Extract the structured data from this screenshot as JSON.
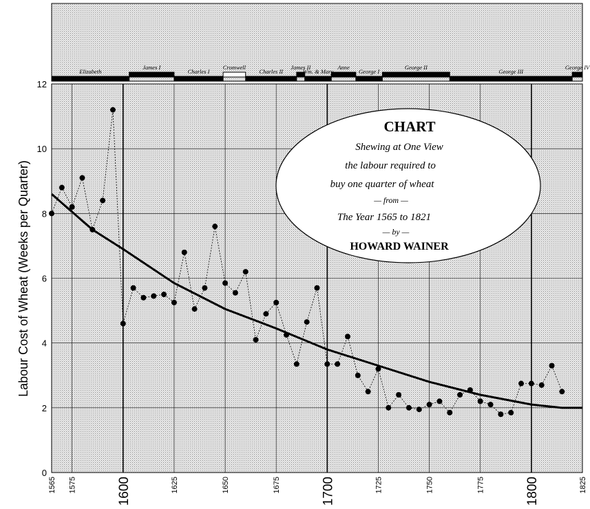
{
  "chart_data": {
    "type": "scatter",
    "title": "CHART",
    "subtitle_lines": [
      "Shewing at One View",
      "the labour required to",
      "buy one quarter of wheat",
      "— from —",
      "The Year 1565 to 1821",
      "— by —",
      "HOWARD WAINER"
    ],
    "ylabel": "Labour Cost of Wheat (Weeks per Quarter)",
    "xlabel": "",
    "xlim": [
      1565,
      1825
    ],
    "ylim": [
      0,
      12
    ],
    "grid": true,
    "x_ticks": [
      {
        "v": 1565,
        "label": "1565",
        "major": false
      },
      {
        "v": 1575,
        "label": "1575",
        "major": false
      },
      {
        "v": 1600,
        "label": "1600",
        "major": true
      },
      {
        "v": 1625,
        "label": "1625",
        "major": false
      },
      {
        "v": 1650,
        "label": "1650",
        "major": false
      },
      {
        "v": 1675,
        "label": "1675",
        "major": false
      },
      {
        "v": 1700,
        "label": "1700",
        "major": true
      },
      {
        "v": 1725,
        "label": "1725",
        "major": false
      },
      {
        "v": 1750,
        "label": "1750",
        "major": false
      },
      {
        "v": 1775,
        "label": "1775",
        "major": false
      },
      {
        "v": 1800,
        "label": "1800",
        "major": true
      },
      {
        "v": 1825,
        "label": "1825",
        "major": false
      }
    ],
    "y_ticks": [
      0,
      2,
      4,
      6,
      8,
      10,
      12
    ],
    "series": [
      {
        "values": [
          [
            1565,
            8.0
          ],
          [
            1570,
            8.8
          ],
          [
            1575,
            8.2
          ],
          [
            1580,
            9.1
          ],
          [
            1585,
            7.5
          ],
          [
            1590,
            8.4
          ],
          [
            1595,
            11.2
          ],
          [
            1600,
            4.6
          ],
          [
            1605,
            5.7
          ],
          [
            1610,
            5.4
          ],
          [
            1615,
            5.45
          ],
          [
            1620,
            5.5
          ],
          [
            1625,
            5.25
          ],
          [
            1630,
            6.8
          ],
          [
            1635,
            5.05
          ],
          [
            1640,
            5.7
          ],
          [
            1645,
            7.6
          ],
          [
            1650,
            5.85
          ],
          [
            1655,
            5.55
          ],
          [
            1660,
            6.2
          ],
          [
            1665,
            4.1
          ],
          [
            1670,
            4.9
          ],
          [
            1675,
            5.25
          ],
          [
            1680,
            4.25
          ],
          [
            1685,
            3.35
          ],
          [
            1690,
            4.65
          ],
          [
            1695,
            5.7
          ],
          [
            1700,
            3.35
          ],
          [
            1705,
            3.35
          ],
          [
            1710,
            4.2
          ],
          [
            1715,
            3.0
          ],
          [
            1720,
            2.5
          ],
          [
            1725,
            3.2
          ],
          [
            1730,
            2.0
          ],
          [
            1735,
            2.4
          ],
          [
            1740,
            2.0
          ],
          [
            1745,
            1.95
          ],
          [
            1750,
            2.1
          ],
          [
            1755,
            2.2
          ],
          [
            1760,
            1.85
          ],
          [
            1765,
            2.4
          ],
          [
            1770,
            2.55
          ],
          [
            1775,
            2.2
          ],
          [
            1780,
            2.1
          ],
          [
            1785,
            1.8
          ],
          [
            1790,
            1.85
          ],
          [
            1795,
            2.75
          ],
          [
            1800,
            2.75
          ],
          [
            1805,
            2.7
          ],
          [
            1810,
            3.3
          ],
          [
            1815,
            2.5
          ]
        ]
      },
      {
        "type": "line",
        "values": [
          [
            1565,
            8.6
          ],
          [
            1575,
            8.05
          ],
          [
            1585,
            7.5
          ],
          [
            1600,
            6.9
          ],
          [
            1625,
            5.85
          ],
          [
            1650,
            5.05
          ],
          [
            1675,
            4.45
          ],
          [
            1700,
            3.8
          ],
          [
            1725,
            3.3
          ],
          [
            1750,
            2.8
          ],
          [
            1775,
            2.4
          ],
          [
            1800,
            2.1
          ],
          [
            1815,
            2.0
          ],
          [
            1825,
            2.0
          ]
        ]
      }
    ],
    "monarchs": [
      {
        "name": "Elizabeth",
        "start": 1565,
        "end": 1603,
        "color": "#000000"
      },
      {
        "name": "James I",
        "start": 1603,
        "end": 1625,
        "color": "#000000"
      },
      {
        "name": "Charles I",
        "start": 1625,
        "end": 1649,
        "color": "#000000"
      },
      {
        "name": "Cromwell",
        "start": 1649,
        "end": 1660,
        "color": "#ffffff"
      },
      {
        "name": "Charles II",
        "start": 1660,
        "end": 1685,
        "color": "#000000"
      },
      {
        "name": "James II",
        "start": 1685,
        "end": 1689,
        "color": "#000000"
      },
      {
        "name": "Wm. & Mary",
        "start": 1689,
        "end": 1702,
        "color": "#000000"
      },
      {
        "name": "Anne",
        "start": 1702,
        "end": 1714,
        "color": "#000000"
      },
      {
        "name": "George I",
        "start": 1714,
        "end": 1727,
        "color": "#000000"
      },
      {
        "name": "George II",
        "start": 1727,
        "end": 1760,
        "color": "#000000"
      },
      {
        "name": "George III",
        "start": 1760,
        "end": 1820,
        "color": "#000000"
      },
      {
        "name": "George IV",
        "start": 1820,
        "end": 1825,
        "color": "#000000"
      }
    ],
    "colors": {
      "ink": "#000000",
      "background_stipple": "#e2e2e2",
      "cartouche": "#ffffff"
    }
  }
}
